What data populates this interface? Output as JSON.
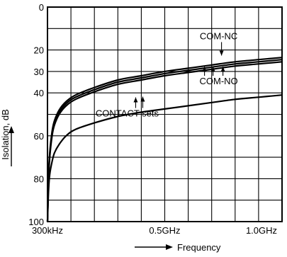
{
  "chart_data": {
    "type": "line",
    "title": "",
    "xlabel": "Frequency",
    "ylabel": "Isolation, dB",
    "x_unit_note": "x values in GHz; 300kHz = 0.0003 GHz",
    "xlim": [
      0.0003,
      1.0
    ],
    "ylim": [
      0,
      100
    ],
    "y_inverted": true,
    "grid": true,
    "x_ticks": [
      {
        "value": 0.0003,
        "label": "300kHz"
      },
      {
        "value": 0.5,
        "label": "0.5GHz"
      },
      {
        "value": 1.0,
        "label": "1.0GHz"
      }
    ],
    "y_ticks": [
      {
        "value": 0,
        "label": "0"
      },
      {
        "value": 20,
        "label": "20"
      },
      {
        "value": 30,
        "label": "30"
      },
      {
        "value": 40,
        "label": "40"
      },
      {
        "value": 60,
        "label": "60"
      },
      {
        "value": 80,
        "label": "80"
      },
      {
        "value": 100,
        "label": "100"
      }
    ],
    "annotations": [
      {
        "text": "COM-NC",
        "x": 0.73,
        "y": 15
      },
      {
        "text": "COM-NO",
        "x": 0.73,
        "y": 36
      },
      {
        "text": "CONTACT sets",
        "x": 0.34,
        "y": 51
      }
    ],
    "series": [
      {
        "x": [
          0.0003,
          0.005,
          0.01,
          0.02,
          0.03,
          0.05,
          0.08,
          0.12,
          0.2,
          0.3,
          0.4,
          0.5,
          0.6,
          0.7,
          0.8,
          0.9,
          1.0
        ],
        "values": [
          100,
          78,
          68,
          58,
          53,
          48,
          44,
          41,
          37.5,
          34,
          32,
          30,
          28.5,
          27,
          25.5,
          24.5,
          23.5
        ]
      },
      {
        "x": [
          0.0003,
          0.005,
          0.01,
          0.02,
          0.03,
          0.05,
          0.08,
          0.12,
          0.2,
          0.3,
          0.4,
          0.5,
          0.6,
          0.7,
          0.8,
          0.9,
          1.0
        ],
        "values": [
          100,
          79,
          69,
          59,
          54,
          49,
          45,
          42,
          38.5,
          35,
          33,
          31,
          29.5,
          28,
          26.5,
          25.5,
          24.5
        ]
      },
      {
        "x": [
          0.0003,
          0.005,
          0.01,
          0.02,
          0.03,
          0.05,
          0.08,
          0.12,
          0.2,
          0.3,
          0.4,
          0.5,
          0.6,
          0.7,
          0.8,
          0.9,
          1.0
        ],
        "values": [
          100,
          80,
          70,
          60,
          55,
          50,
          46,
          43,
          39.5,
          36,
          34,
          32,
          30.5,
          29,
          27.5,
          26.5,
          25.5
        ]
      },
      {
        "x": [
          0.0003,
          0.005,
          0.01,
          0.02,
          0.03,
          0.05,
          0.08,
          0.12,
          0.2,
          0.3,
          0.4,
          0.5,
          0.6,
          0.7,
          0.8,
          0.9,
          1.0
        ],
        "values": [
          100,
          85,
          78,
          72,
          68,
          64,
          60,
          57,
          54,
          51,
          49,
          47.5,
          46,
          44.5,
          43,
          42,
          41
        ]
      }
    ]
  }
}
